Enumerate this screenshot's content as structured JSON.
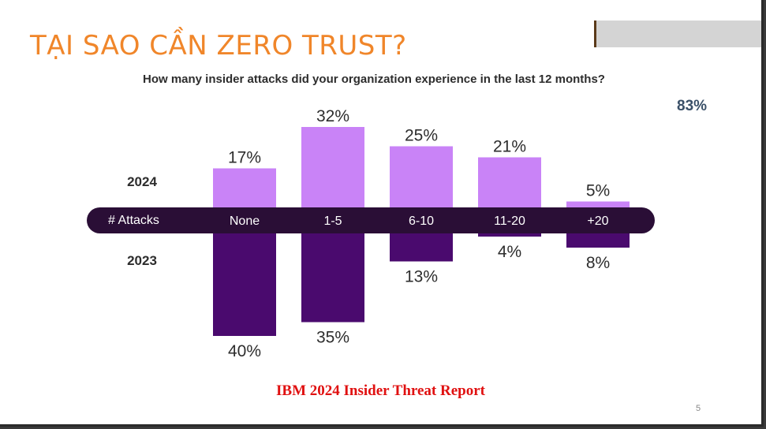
{
  "slide": {
    "title": "TẠI SAO CẦN ZERO TRUST?",
    "stat": "83%",
    "footer": "IBM 2024 Insider Threat Report",
    "page_number": "5"
  },
  "chart_data": {
    "type": "bar",
    "title": "How many insider attacks did your organization experience in the last 12 months?",
    "axis_label": "# Attacks",
    "categories": [
      "None",
      "1-5",
      "6-10",
      "11-20",
      "+20"
    ],
    "series": [
      {
        "name": "2024",
        "values": [
          17,
          32,
          25,
          21,
          5
        ],
        "labels": [
          "17%",
          "32%",
          "25%",
          "21%",
          "5%"
        ],
        "color": "#c983f7"
      },
      {
        "name": "2023",
        "values": [
          40,
          35,
          13,
          4,
          8
        ],
        "labels": [
          "40%",
          "35%",
          "13%",
          "4%",
          "8%"
        ],
        "color": "#4a0a6e"
      }
    ],
    "band_color": "#2a0e36",
    "legend": "left"
  }
}
